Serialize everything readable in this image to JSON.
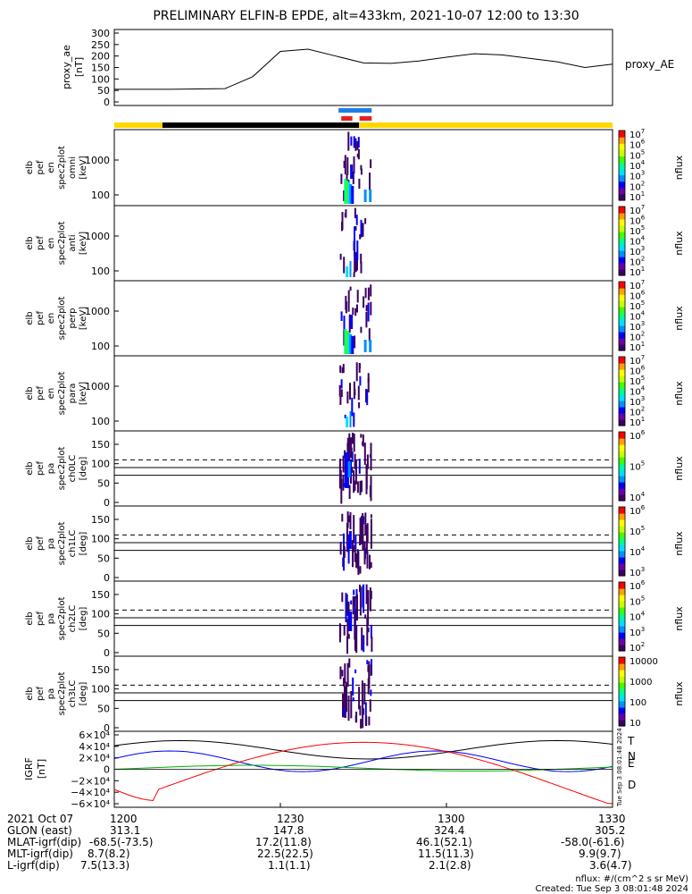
{
  "chart_data": {
    "type": "heatmap",
    "title": "PRELIMINARY ELFIN-B EPDE, alt=433km, 2021-10-07 12:00 to 13:30",
    "time_axis": {
      "date_label": "2021 Oct 07",
      "ticks": [
        "1200",
        "1230",
        "1300",
        "1330"
      ],
      "range": [
        "12:00",
        "13:30"
      ]
    },
    "panels": [
      {
        "name": "proxy_ae",
        "type": "line",
        "ylabel": [
          "proxy_ae",
          "[nT]"
        ],
        "legend": "proxy_AE",
        "yticks": [
          "300",
          "250",
          "200",
          "150",
          "100",
          "50",
          "0"
        ],
        "ylim": [
          0,
          300
        ],
        "x_min": [
          0,
          10,
          20,
          25,
          30,
          35,
          40,
          45,
          50,
          55,
          60,
          65,
          70,
          75,
          80,
          85,
          90
        ],
        "values": [
          55,
          55,
          58,
          110,
          220,
          230,
          200,
          170,
          168,
          178,
          195,
          210,
          205,
          190,
          175,
          150,
          165
        ]
      },
      {
        "name": "omni",
        "type": "spectrogram",
        "ylabel": [
          "elb",
          "pef",
          "en",
          "spec2plot",
          "omni",
          "[keV]"
        ],
        "yticks": [
          "1000",
          "100"
        ],
        "cbar_ticks": [
          "10^7",
          "10^6",
          "10^5",
          "10^4",
          "10^3",
          "10^2",
          "10^1"
        ],
        "cbar_label": "nflux"
      },
      {
        "name": "anti",
        "type": "spectrogram",
        "ylabel": [
          "elb",
          "pef",
          "en",
          "spec2plot",
          "anti",
          "[keV]"
        ],
        "yticks": [
          "1000",
          "100"
        ],
        "cbar_ticks": [
          "10^7",
          "10^6",
          "10^5",
          "10^4",
          "10^3",
          "10^2",
          "10^1"
        ],
        "cbar_label": "nflux"
      },
      {
        "name": "perp",
        "type": "spectrogram",
        "ylabel": [
          "elb",
          "pef",
          "en",
          "spec2plot",
          "perp",
          "[keV]"
        ],
        "yticks": [
          "1000",
          "100"
        ],
        "cbar_ticks": [
          "10^7",
          "10^6",
          "10^5",
          "10^4",
          "10^3",
          "10^2",
          "10^1"
        ],
        "cbar_label": "nflux"
      },
      {
        "name": "para",
        "type": "spectrogram",
        "ylabel": [
          "elb",
          "pef",
          "en",
          "spec2plot",
          "para",
          "[keV]"
        ],
        "yticks": [
          "1000",
          "100"
        ],
        "cbar_ticks": [
          "10^7",
          "10^6",
          "10^5",
          "10^4",
          "10^3",
          "10^2",
          "10^1"
        ],
        "cbar_label": "nflux"
      },
      {
        "name": "ch0LC",
        "type": "spectrogram",
        "ylabel": [
          "elb",
          "pef",
          "pa",
          "spec2plot",
          "ch0LC",
          "[deg]"
        ],
        "yticks": [
          "150",
          "100",
          "50",
          "0"
        ],
        "ylim": [
          0,
          180
        ],
        "cbar_ticks": [
          "10^6",
          "10^5",
          "10^4"
        ],
        "cbar_label": "nflux"
      },
      {
        "name": "ch1LC",
        "type": "spectrogram",
        "ylabel": [
          "elb",
          "pef",
          "pa",
          "spec2plot",
          "ch1LC",
          "[deg]"
        ],
        "yticks": [
          "150",
          "100",
          "50",
          "0"
        ],
        "ylim": [
          0,
          180
        ],
        "cbar_ticks": [
          "10^6",
          "10^5",
          "10^4",
          "10^3"
        ],
        "cbar_label": "nflux"
      },
      {
        "name": "ch2LC",
        "type": "spectrogram",
        "ylabel": [
          "elb",
          "pef",
          "pa",
          "spec2plot",
          "ch2LC",
          "[deg]"
        ],
        "yticks": [
          "150",
          "100",
          "50",
          "0"
        ],
        "ylim": [
          0,
          180
        ],
        "cbar_ticks": [
          "10^6",
          "10^5",
          "10^4",
          "10^3",
          "10^2"
        ],
        "cbar_label": "nflux"
      },
      {
        "name": "ch3LC",
        "type": "spectrogram",
        "ylabel": [
          "elb",
          "pef",
          "pa",
          "spec2plot",
          "ch3LC",
          "[deg]"
        ],
        "yticks": [
          "150",
          "100",
          "50",
          "0"
        ],
        "ylim": [
          0,
          180
        ],
        "cbar_ticks": [
          "10000",
          "1000",
          "100",
          "10"
        ],
        "cbar_label": "nflux"
      },
      {
        "name": "IGRF",
        "type": "line",
        "ylabel": [
          "IGRF",
          "[nT]"
        ],
        "yticks": [
          "6×10⁴",
          "4×10⁴",
          "2×10⁴",
          "0",
          "−2×10⁴",
          "−4×10⁴",
          "−6×10⁴"
        ],
        "ylim": [
          -60000,
          60000
        ],
        "legend": [
          "T",
          "N",
          "E",
          "D"
        ]
      }
    ],
    "footer": {
      "rows": [
        {
          "label": "2021 Oct 07",
          "values": [
            "1200",
            "1230",
            "1300",
            "1330"
          ]
        },
        {
          "label": "GLON (east)",
          "values": [
            "313.1",
            "147.8",
            "324.4",
            "305.2"
          ]
        },
        {
          "label": "MLAT-igrf(dip)",
          "values": [
            "-68.5(-73.5)",
            "17.2(11.8)",
            "46.1(52.1)",
            "-58.0(-61.6)"
          ]
        },
        {
          "label": "MLT-igrf(dip)",
          "values": [
            "8.7(8.2)",
            "22.5(22.5)",
            "11.5(11.3)",
            "9.9(9.7)"
          ]
        },
        {
          "label": "L-igrf(dip)",
          "values": [
            "7.5(13.3)",
            "1.1(1.1)",
            "2.1(2.8)",
            "3.6(4.7)"
          ]
        }
      ],
      "units_note": "nflux: #/(cm^2 s sr MeV)",
      "created": "Created: Tue Sep  3 08:01:48 2024",
      "side_stamp": "Tue Sep  3 08:01:48 2024"
    }
  }
}
